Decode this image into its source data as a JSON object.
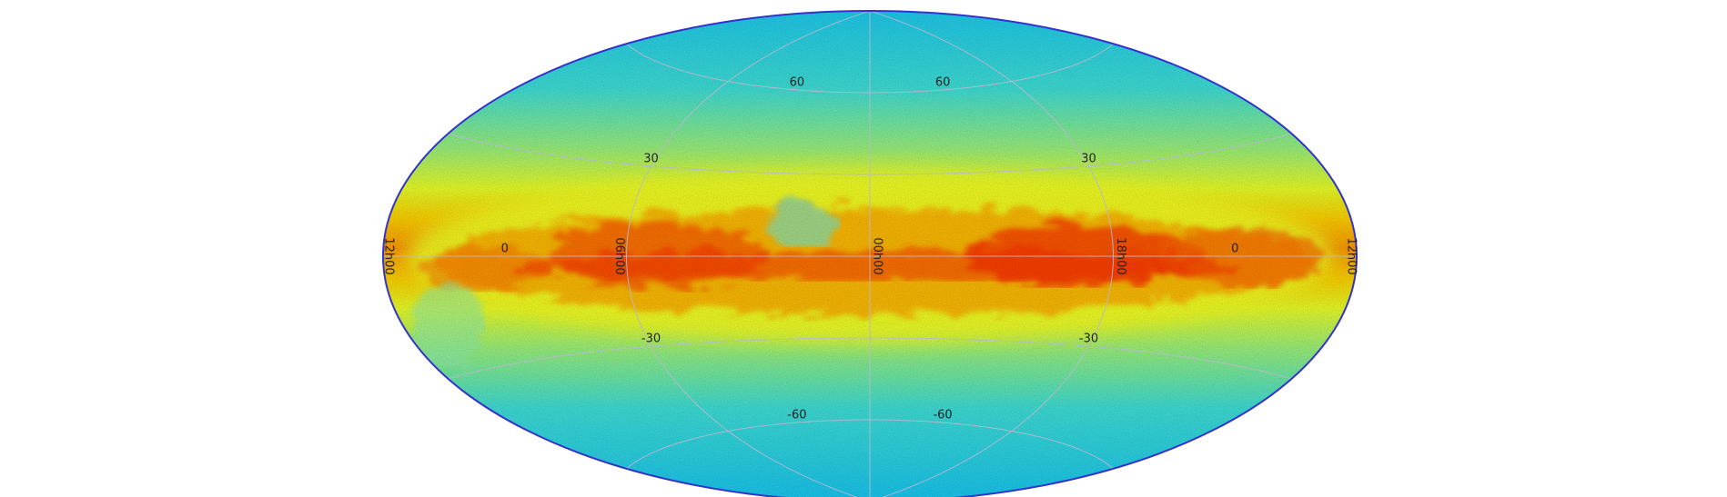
{
  "map": {
    "projection": "Aitoff",
    "colormap": "jet",
    "colors": {
      "background": "#ffffff",
      "grid": "#b8b8cc",
      "edge": "#3333cc",
      "label": "#222222"
    },
    "latitude_labels": [
      {
        "text": "60",
        "lat": 60,
        "lon_offsets": [
          -45,
          45
        ]
      },
      {
        "text": "30",
        "lat": 30,
        "lon_offsets": [
          -90,
          90
        ]
      },
      {
        "text": "0",
        "lat": 0,
        "lon_offsets": [
          -135,
          135
        ]
      },
      {
        "text": "-30",
        "lat": -30,
        "lon_offsets": [
          -90,
          90
        ]
      },
      {
        "text": "-60",
        "lat": -60,
        "lon_offsets": [
          -45,
          45
        ]
      }
    ],
    "longitude_labels": [
      {
        "text": "12h00",
        "lon_offset": -180
      },
      {
        "text": "06h00",
        "lon_offset": -90
      },
      {
        "text": "00h00",
        "lon_offset": 0
      },
      {
        "text": "18h00",
        "lon_offset": 90
      },
      {
        "text": "12h00",
        "lon_offset": 180
      }
    ]
  }
}
